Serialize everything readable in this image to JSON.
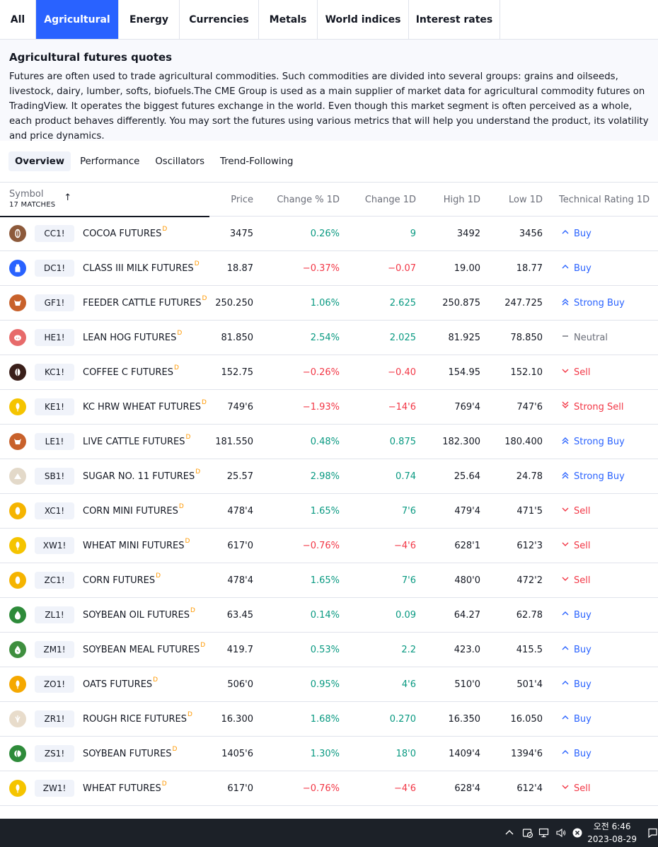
{
  "category_tabs": [
    {
      "label": "All",
      "active": false
    },
    {
      "label": "Agricultural",
      "active": true
    },
    {
      "label": "Energy",
      "active": false
    },
    {
      "label": "Currencies",
      "active": false
    },
    {
      "label": "Metals",
      "active": false
    },
    {
      "label": "World indices",
      "active": false
    },
    {
      "label": "Interest rates",
      "active": false
    }
  ],
  "description": {
    "title": "Agricultural futures quotes",
    "text": "Futures are often used to trade agricultural commodities. Such commodities are divided into several groups: grains and oilseeds, livestock, dairy, lumber, softs, biofuels.The CME Group is used as a main supplier of market data for agricultural commodity futures on TradingView. It operates the biggest futures exchange in the world. Even though this market segment is often perceived as a whole, each product behaves differently. You may sort the futures using various metrics that will help you understand the product, its volatility and price dynamics."
  },
  "sub_tabs": [
    {
      "label": "Overview",
      "active": true
    },
    {
      "label": "Performance",
      "active": false
    },
    {
      "label": "Oscillators",
      "active": false
    },
    {
      "label": "Trend-Following",
      "active": false
    }
  ],
  "table": {
    "symbol_header": "Symbol",
    "matches": "17 MATCHES",
    "sort_indicator": "↑",
    "columns": [
      "Price",
      "Change % 1D",
      "Change 1D",
      "High 1D",
      "Low 1D",
      "Technical Rating 1D"
    ],
    "rows": [
      {
        "icon": "cocoa-icon",
        "icon_bg": "#8d5a3b",
        "ticker": "CC1!",
        "name": "COCOA FUTURES",
        "badge": "D",
        "price": "3475",
        "change_pct": "0.26%",
        "change": "9",
        "dir": "pos",
        "high": "3492",
        "low": "3456",
        "rating": "Buy",
        "rating_kind": "buy"
      },
      {
        "icon": "milk-icon",
        "icon_bg": "#2962ff",
        "ticker": "DC1!",
        "name": "CLASS III MILK FUTURES",
        "badge": "D",
        "price": "18.87",
        "change_pct": "−0.37%",
        "change": "−0.07",
        "dir": "neg",
        "high": "19.00",
        "low": "18.77",
        "rating": "Buy",
        "rating_kind": "buy"
      },
      {
        "icon": "cattle-icon",
        "icon_bg": "#c8612b",
        "ticker": "GF1!",
        "name": "FEEDER CATTLE FUTURES",
        "badge": "D",
        "price": "250.250",
        "change_pct": "1.06%",
        "change": "2.625",
        "dir": "pos",
        "high": "250.875",
        "low": "247.725",
        "rating": "Strong Buy",
        "rating_kind": "strong-buy"
      },
      {
        "icon": "hog-icon",
        "icon_bg": "#e76a6a",
        "ticker": "HE1!",
        "name": "LEAN HOG FUTURES",
        "badge": "D",
        "price": "81.850",
        "change_pct": "2.54%",
        "change": "2.025",
        "dir": "pos",
        "high": "81.925",
        "low": "78.850",
        "rating": "Neutral",
        "rating_kind": "neutral"
      },
      {
        "icon": "coffee-icon",
        "icon_bg": "#3a1f1a",
        "ticker": "KC1!",
        "name": "COFFEE C FUTURES",
        "badge": "D",
        "price": "152.75",
        "change_pct": "−0.26%",
        "change": "−0.40",
        "dir": "neg",
        "high": "154.95",
        "low": "152.10",
        "rating": "Sell",
        "rating_kind": "sell"
      },
      {
        "icon": "wheat-icon",
        "icon_bg": "#f5c400",
        "ticker": "KE1!",
        "name": "KC HRW WHEAT FUTURES",
        "badge": "D",
        "price": "749'6",
        "change_pct": "−1.93%",
        "change": "−14'6",
        "dir": "neg",
        "high": "769'4",
        "low": "747'6",
        "rating": "Strong Sell",
        "rating_kind": "strong-sell"
      },
      {
        "icon": "cattle-icon",
        "icon_bg": "#c8612b",
        "ticker": "LE1!",
        "name": "LIVE CATTLE FUTURES",
        "badge": "D",
        "price": "181.550",
        "change_pct": "0.48%",
        "change": "0.875",
        "dir": "pos",
        "high": "182.300",
        "low": "180.400",
        "rating": "Strong Buy",
        "rating_kind": "strong-buy"
      },
      {
        "icon": "sugar-icon",
        "icon_bg": "#e3d9c9",
        "ticker": "SB1!",
        "name": "SUGAR NO. 11 FUTURES",
        "badge": "D",
        "price": "25.57",
        "change_pct": "2.98%",
        "change": "0.74",
        "dir": "pos",
        "high": "25.64",
        "low": "24.78",
        "rating": "Strong Buy",
        "rating_kind": "strong-buy"
      },
      {
        "icon": "corn-icon",
        "icon_bg": "#f5b400",
        "ticker": "XC1!",
        "name": "CORN MINI FUTURES",
        "badge": "D",
        "price": "478'4",
        "change_pct": "1.65%",
        "change": "7'6",
        "dir": "pos",
        "high": "479'4",
        "low": "471'5",
        "rating": "Sell",
        "rating_kind": "sell"
      },
      {
        "icon": "wheat-icon",
        "icon_bg": "#f5c400",
        "ticker": "XW1!",
        "name": "WHEAT MINI FUTURES",
        "badge": "D",
        "price": "617'0",
        "change_pct": "−0.76%",
        "change": "−4'6",
        "dir": "neg",
        "high": "628'1",
        "low": "612'3",
        "rating": "Sell",
        "rating_kind": "sell"
      },
      {
        "icon": "corn-icon",
        "icon_bg": "#f5b400",
        "ticker": "ZC1!",
        "name": "CORN FUTURES",
        "badge": "D",
        "price": "478'4",
        "change_pct": "1.65%",
        "change": "7'6",
        "dir": "pos",
        "high": "480'0",
        "low": "472'2",
        "rating": "Sell",
        "rating_kind": "sell"
      },
      {
        "icon": "soybean-oil-icon",
        "icon_bg": "#2e8b3a",
        "ticker": "ZL1!",
        "name": "SOYBEAN OIL FUTURES",
        "badge": "D",
        "price": "63.45",
        "change_pct": "0.14%",
        "change": "0.09",
        "dir": "pos",
        "high": "64.27",
        "low": "62.78",
        "rating": "Buy",
        "rating_kind": "buy"
      },
      {
        "icon": "soybean-meal-icon",
        "icon_bg": "#3f8f3f",
        "ticker": "ZM1!",
        "name": "SOYBEAN MEAL FUTURES",
        "badge": "D",
        "price": "419.7",
        "change_pct": "0.53%",
        "change": "2.2",
        "dir": "pos",
        "high": "423.0",
        "low": "415.5",
        "rating": "Buy",
        "rating_kind": "buy"
      },
      {
        "icon": "oats-icon",
        "icon_bg": "#f5a800",
        "ticker": "ZO1!",
        "name": "OATS FUTURES",
        "badge": "D",
        "price": "506'0",
        "change_pct": "0.95%",
        "change": "4'6",
        "dir": "pos",
        "high": "510'0",
        "low": "501'4",
        "rating": "Buy",
        "rating_kind": "buy"
      },
      {
        "icon": "rice-icon",
        "icon_bg": "#e8dccb",
        "ticker": "ZR1!",
        "name": "ROUGH RICE FUTURES",
        "badge": "D",
        "price": "16.300",
        "change_pct": "1.68%",
        "change": "0.270",
        "dir": "pos",
        "high": "16.350",
        "low": "16.050",
        "rating": "Buy",
        "rating_kind": "buy"
      },
      {
        "icon": "soybean-icon",
        "icon_bg": "#2e8b3a",
        "ticker": "ZS1!",
        "name": "SOYBEAN FUTURES",
        "badge": "D",
        "price": "1405'6",
        "change_pct": "1.30%",
        "change": "18'0",
        "dir": "pos",
        "high": "1409'4",
        "low": "1394'6",
        "rating": "Buy",
        "rating_kind": "buy"
      },
      {
        "icon": "wheat-icon",
        "icon_bg": "#f5c400",
        "ticker": "ZW1!",
        "name": "WHEAT FUTURES",
        "badge": "D",
        "price": "617'0",
        "change_pct": "−0.76%",
        "change": "−4'6",
        "dir": "neg",
        "high": "628'4",
        "low": "612'4",
        "rating": "Sell",
        "rating_kind": "sell"
      }
    ]
  },
  "taskbar": {
    "time": "오전 6:46",
    "date": "2023-08-29",
    "icons": [
      "chevron-up-icon",
      "security-icon",
      "network-icon",
      "volume-icon",
      "close-circle-icon",
      "notification-icon"
    ]
  },
  "colors": {
    "accent": "#2962ff",
    "positive": "#089981",
    "negative": "#f23645",
    "neutral": "#6a6d78"
  }
}
